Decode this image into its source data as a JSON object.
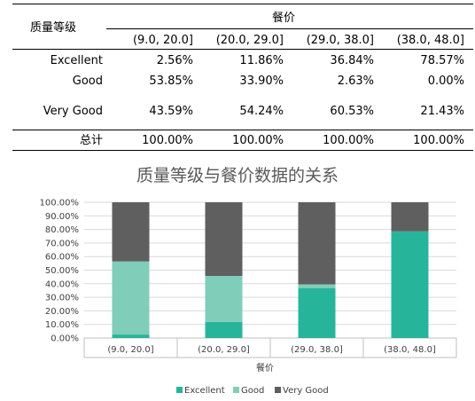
{
  "table": {
    "row_header_title": "质量等级",
    "col_group_title": "餐价",
    "columns": [
      "(9.0, 20.0]",
      "(20.0, 29.0]",
      "(29.0, 38.0]",
      "(38.0, 48.0]"
    ],
    "rows": [
      {
        "label": "Excellent",
        "values": [
          "2.56%",
          "11.86%",
          "36.84%",
          "78.57%"
        ]
      },
      {
        "label": "Good",
        "values": [
          "53.85%",
          "33.90%",
          "2.63%",
          "0.00%"
        ]
      },
      {
        "label": "Very Good",
        "values": [
          "43.59%",
          "54.24%",
          "60.53%",
          "21.43%"
        ]
      }
    ],
    "total_row": {
      "label": "总计",
      "values": [
        "100.00%",
        "100.00%",
        "100.00%",
        "100.00%"
      ]
    }
  },
  "chart_data": {
    "type": "bar",
    "stacked": "percent",
    "title": "质量等级与餐价数据的关系",
    "xlabel": "餐价",
    "ylabel": "",
    "ylim": [
      0,
      100
    ],
    "y_ticks": [
      "0.00%",
      "10.00%",
      "20.00%",
      "30.00%",
      "40.00%",
      "50.00%",
      "60.00%",
      "70.00%",
      "80.00%",
      "90.00%",
      "100.00%"
    ],
    "categories": [
      "(9.0, 20.0]",
      "(20.0, 29.0]",
      "(29.0, 38.0]",
      "(38.0, 48.0]"
    ],
    "series": [
      {
        "name": "Excellent",
        "color": "#26b59a",
        "values": [
          2.56,
          11.86,
          36.84,
          78.57
        ]
      },
      {
        "name": "Good",
        "color": "#80cdb9",
        "values": [
          53.85,
          33.9,
          2.63,
          0.0
        ]
      },
      {
        "name": "Very Good",
        "color": "#5f5f5f",
        "values": [
          43.59,
          54.24,
          60.53,
          21.43
        ]
      }
    ],
    "grid": true,
    "legend_position": "bottom"
  }
}
